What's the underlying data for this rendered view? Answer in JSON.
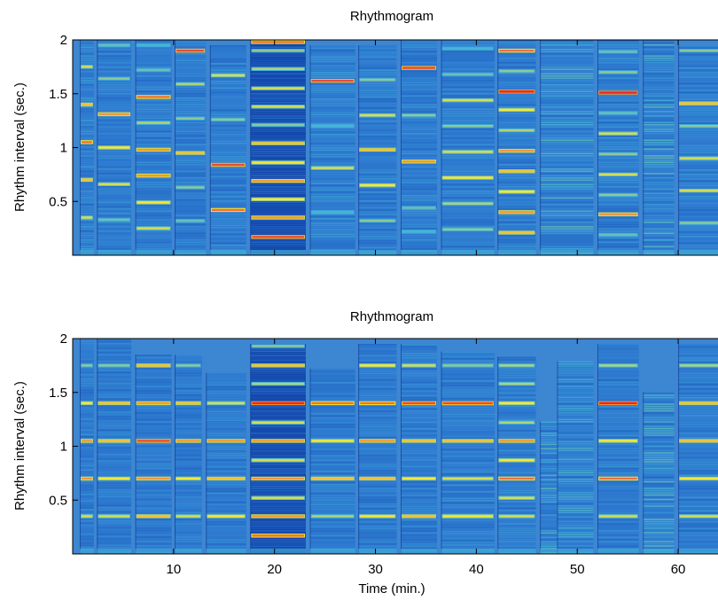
{
  "chart_data": [
    {
      "type": "heatmap",
      "title": "Rhythmogram",
      "xlabel": "",
      "ylabel": "Rhythm interval (sec.)",
      "xlim": [
        0,
        65
      ],
      "ylim": [
        0,
        2
      ],
      "xticks": [
        10,
        20,
        30,
        40,
        50,
        60
      ],
      "xtick_labels": [
        "",
        "",
        "",
        "",
        "",
        ""
      ],
      "yticks": [
        0.5,
        1,
        1.5,
        2
      ],
      "ytick_labels": [
        "0.5",
        "1",
        "1.5",
        "2"
      ],
      "colormap": [
        "#0c3fa8",
        "#2f7fd6",
        "#46b4d8",
        "#f5e836",
        "#e8262a"
      ],
      "segments": [
        {
          "x": [
            0.7,
            2.1
          ],
          "top": 2.0,
          "lines": [
            [
              0.35,
              0.7
            ],
            [
              0.7,
              0.8
            ],
            [
              1.05,
              0.9
            ],
            [
              1.4,
              0.8
            ],
            [
              1.75,
              0.7
            ]
          ],
          "noise": 0.5
        },
        {
          "x": [
            2.4,
            5.8
          ],
          "top": 2.0,
          "lines": [
            [
              0.33,
              0.55
            ],
            [
              0.66,
              0.7
            ],
            [
              1.0,
              0.75
            ],
            [
              1.31,
              0.85
            ],
            [
              1.64,
              0.6
            ],
            [
              1.95,
              0.55
            ]
          ],
          "noise": 0.4
        },
        {
          "x": [
            6.2,
            9.8
          ],
          "top": 2.0,
          "lines": [
            [
              0.25,
              0.7
            ],
            [
              0.49,
              0.75
            ],
            [
              0.74,
              0.85
            ],
            [
              0.98,
              0.85
            ],
            [
              1.23,
              0.65
            ],
            [
              1.47,
              0.9
            ],
            [
              1.72,
              0.55
            ],
            [
              1.95,
              0.5
            ]
          ],
          "noise": 0.4
        },
        {
          "x": [
            10.1,
            13.2
          ],
          "top": 2.0,
          "lines": [
            [
              0.32,
              0.55
            ],
            [
              0.63,
              0.6
            ],
            [
              0.95,
              0.8
            ],
            [
              1.27,
              0.6
            ],
            [
              1.59,
              0.65
            ],
            [
              1.9,
              0.95
            ]
          ],
          "noise": 0.4
        },
        {
          "x": [
            13.6,
            17.2
          ],
          "top": 1.95,
          "lines": [
            [
              0.42,
              0.9
            ],
            [
              0.84,
              0.95
            ],
            [
              1.26,
              0.6
            ],
            [
              1.67,
              0.7
            ]
          ],
          "noise": 0.45
        },
        {
          "x": [
            17.6,
            23.1
          ],
          "top": 2.0,
          "lines": [
            [
              0.17,
              0.95
            ],
            [
              0.35,
              0.85
            ],
            [
              0.52,
              0.75
            ],
            [
              0.69,
              0.85
            ],
            [
              0.86,
              0.75
            ],
            [
              1.04,
              0.8
            ],
            [
              1.21,
              0.6
            ],
            [
              1.38,
              0.7
            ],
            [
              1.55,
              0.7
            ],
            [
              1.73,
              0.65
            ],
            [
              1.9,
              0.6
            ],
            [
              1.98,
              0.9
            ]
          ],
          "noise": 0.3,
          "dark": true
        },
        {
          "x": [
            23.5,
            28.0
          ],
          "top": 1.95,
          "lines": [
            [
              0.4,
              0.5
            ],
            [
              0.81,
              0.7
            ],
            [
              1.2,
              0.5
            ],
            [
              1.62,
              0.95
            ]
          ],
          "noise": 0.5
        },
        {
          "x": [
            28.3,
            32.1
          ],
          "top": 1.95,
          "lines": [
            [
              0.32,
              0.6
            ],
            [
              0.65,
              0.75
            ],
            [
              0.98,
              0.8
            ],
            [
              1.3,
              0.7
            ],
            [
              1.63,
              0.6
            ],
            [
              1.95,
              0.5
            ]
          ],
          "noise": 0.45
        },
        {
          "x": [
            32.5,
            36.1
          ],
          "top": 2.0,
          "lines": [
            [
              0.22,
              0.5
            ],
            [
              0.44,
              0.55
            ],
            [
              0.87,
              0.85
            ],
            [
              1.3,
              0.6
            ],
            [
              1.74,
              0.95
            ]
          ],
          "noise": 0.45
        },
        {
          "x": [
            36.5,
            41.8
          ],
          "top": 2.0,
          "lines": [
            [
              0.24,
              0.6
            ],
            [
              0.48,
              0.65
            ],
            [
              0.72,
              0.75
            ],
            [
              0.96,
              0.7
            ],
            [
              1.2,
              0.6
            ],
            [
              1.44,
              0.7
            ],
            [
              1.68,
              0.55
            ],
            [
              1.92,
              0.5
            ]
          ],
          "noise": 0.4
        },
        {
          "x": [
            42.1,
            45.9
          ],
          "top": 2.0,
          "lines": [
            [
              0.21,
              0.8
            ],
            [
              0.4,
              0.85
            ],
            [
              0.59,
              0.75
            ],
            [
              0.78,
              0.8
            ],
            [
              0.97,
              0.85
            ],
            [
              1.16,
              0.65
            ],
            [
              1.35,
              0.75
            ],
            [
              1.52,
              1.0
            ],
            [
              1.71,
              0.6
            ],
            [
              1.9,
              0.9
            ]
          ],
          "noise": 0.4
        },
        {
          "x": [
            46.3,
            51.6
          ],
          "top": 2.0,
          "lines": [],
          "noise": 0.75
        },
        {
          "x": [
            52.0,
            56.1
          ],
          "top": 2.0,
          "lines": [
            [
              0.19,
              0.55
            ],
            [
              0.38,
              0.85
            ],
            [
              0.56,
              0.6
            ],
            [
              0.75,
              0.7
            ],
            [
              0.94,
              0.6
            ],
            [
              1.13,
              0.7
            ],
            [
              1.32,
              0.55
            ],
            [
              1.51,
              1.0
            ],
            [
              1.7,
              0.6
            ],
            [
              1.89,
              0.55
            ]
          ],
          "noise": 0.45
        },
        {
          "x": [
            56.5,
            59.6
          ],
          "top": 2.0,
          "lines": [],
          "noise": 0.75
        },
        {
          "x": [
            60.0,
            65.0
          ],
          "top": 1.95,
          "lines": [
            [
              0.3,
              0.6
            ],
            [
              0.6,
              0.7
            ],
            [
              0.9,
              0.7
            ],
            [
              1.2,
              0.6
            ],
            [
              1.41,
              0.8
            ],
            [
              1.9,
              0.6
            ]
          ],
          "noise": 0.45
        }
      ]
    },
    {
      "type": "heatmap",
      "title": "Rhythmogram",
      "xlabel": "Time (min.)",
      "ylabel": "Rhythm interval (sec.)",
      "xlim": [
        0,
        65
      ],
      "ylim": [
        0,
        2
      ],
      "xticks": [
        10,
        20,
        30,
        40,
        50,
        60
      ],
      "xtick_labels": [
        "10",
        "20",
        "30",
        "40",
        "50",
        "60"
      ],
      "yticks": [
        0.5,
        1,
        1.5,
        2
      ],
      "ytick_labels": [
        "0.5",
        "1",
        "1.5",
        "2"
      ],
      "colormap": [
        "#0c3fa8",
        "#2f7fd6",
        "#46b4d8",
        "#f5e836",
        "#e8262a"
      ],
      "segments": [
        {
          "x": [
            0.7,
            2.1
          ],
          "top": 2.0,
          "lines": [
            [
              0.35,
              0.7
            ],
            [
              0.7,
              0.85
            ],
            [
              1.05,
              0.85
            ],
            [
              1.4,
              0.75
            ],
            [
              1.75,
              0.6
            ]
          ],
          "noise": 0.4
        },
        {
          "x": [
            2.4,
            5.8
          ],
          "top": 2.0,
          "lines": [
            [
              0.35,
              0.7
            ],
            [
              0.7,
              0.75
            ],
            [
              1.05,
              0.8
            ],
            [
              1.4,
              0.8
            ],
            [
              1.75,
              0.6
            ]
          ],
          "noise": 0.35
        },
        {
          "x": [
            6.2,
            9.8
          ],
          "top": 1.85,
          "lines": [
            [
              0.35,
              0.8
            ],
            [
              0.7,
              0.85
            ],
            [
              1.05,
              0.95
            ],
            [
              1.4,
              0.85
            ],
            [
              1.75,
              0.8
            ]
          ],
          "noise": 0.35
        },
        {
          "x": [
            10.1,
            12.8
          ],
          "top": 1.85,
          "lines": [
            [
              0.35,
              0.7
            ],
            [
              0.7,
              0.75
            ],
            [
              1.05,
              0.85
            ],
            [
              1.4,
              0.8
            ],
            [
              1.75,
              0.6
            ]
          ],
          "noise": 0.35
        },
        {
          "x": [
            13.2,
            17.2
          ],
          "top": 1.68,
          "lines": [
            [
              0.35,
              0.75
            ],
            [
              0.7,
              0.8
            ],
            [
              1.05,
              0.85
            ],
            [
              1.4,
              0.7
            ]
          ],
          "noise": 0.4
        },
        {
          "x": [
            17.6,
            23.1
          ],
          "top": 1.95,
          "lines": [
            [
              0.17,
              0.9
            ],
            [
              0.35,
              0.85
            ],
            [
              0.52,
              0.7
            ],
            [
              0.7,
              0.85
            ],
            [
              0.87,
              0.7
            ],
            [
              1.05,
              0.85
            ],
            [
              1.22,
              0.7
            ],
            [
              1.4,
              1.0
            ],
            [
              1.58,
              0.65
            ],
            [
              1.75,
              0.8
            ],
            [
              1.93,
              0.6
            ]
          ],
          "noise": 0.3,
          "dark": true
        },
        {
          "x": [
            23.5,
            28.0
          ],
          "top": 1.72,
          "lines": [
            [
              0.35,
              0.65
            ],
            [
              0.7,
              0.8
            ],
            [
              1.05,
              0.75
            ],
            [
              1.4,
              0.9
            ]
          ],
          "noise": 0.4
        },
        {
          "x": [
            28.3,
            32.1
          ],
          "top": 1.95,
          "lines": [
            [
              0.35,
              0.75
            ],
            [
              0.7,
              0.8
            ],
            [
              1.05,
              0.85
            ],
            [
              1.4,
              0.9
            ],
            [
              1.75,
              0.75
            ]
          ],
          "noise": 0.35
        },
        {
          "x": [
            32.5,
            36.1
          ],
          "top": 1.95,
          "lines": [
            [
              0.35,
              0.8
            ],
            [
              0.7,
              0.75
            ],
            [
              1.05,
              0.8
            ],
            [
              1.4,
              0.95
            ],
            [
              1.75,
              0.7
            ]
          ],
          "noise": 0.4
        },
        {
          "x": [
            36.5,
            41.8
          ],
          "top": 1.88,
          "lines": [
            [
              0.35,
              0.75
            ],
            [
              0.7,
              0.7
            ],
            [
              1.05,
              0.8
            ],
            [
              1.4,
              0.95
            ],
            [
              1.75,
              0.6
            ]
          ],
          "noise": 0.4
        },
        {
          "x": [
            42.1,
            45.9
          ],
          "top": 1.83,
          "lines": [
            [
              0.35,
              0.7
            ],
            [
              0.52,
              0.7
            ],
            [
              0.7,
              0.9
            ],
            [
              0.87,
              0.75
            ],
            [
              1.05,
              0.85
            ],
            [
              1.22,
              0.65
            ],
            [
              1.4,
              0.75
            ],
            [
              1.58,
              0.65
            ],
            [
              1.75,
              0.65
            ]
          ],
          "noise": 0.4
        },
        {
          "x": [
            46.3,
            48.0
          ],
          "top": 1.23,
          "lines": [],
          "noise": 0.75
        },
        {
          "x": [
            48.0,
            51.6
          ],
          "top": 1.79,
          "lines": [],
          "noise": 0.7
        },
        {
          "x": [
            52.0,
            56.1
          ],
          "top": 1.95,
          "lines": [
            [
              0.35,
              0.7
            ],
            [
              0.7,
              0.9
            ],
            [
              1.05,
              0.75
            ],
            [
              1.4,
              1.0
            ],
            [
              1.75,
              0.65
            ]
          ],
          "noise": 0.4
        },
        {
          "x": [
            56.5,
            59.6
          ],
          "top": 1.5,
          "lines": [],
          "noise": 0.75
        },
        {
          "x": [
            60.0,
            65.0
          ],
          "top": 1.95,
          "lines": [
            [
              0.35,
              0.7
            ],
            [
              0.7,
              0.75
            ],
            [
              1.05,
              0.8
            ],
            [
              1.4,
              0.8
            ],
            [
              1.75,
              0.65
            ]
          ],
          "noise": 0.45
        }
      ]
    }
  ]
}
